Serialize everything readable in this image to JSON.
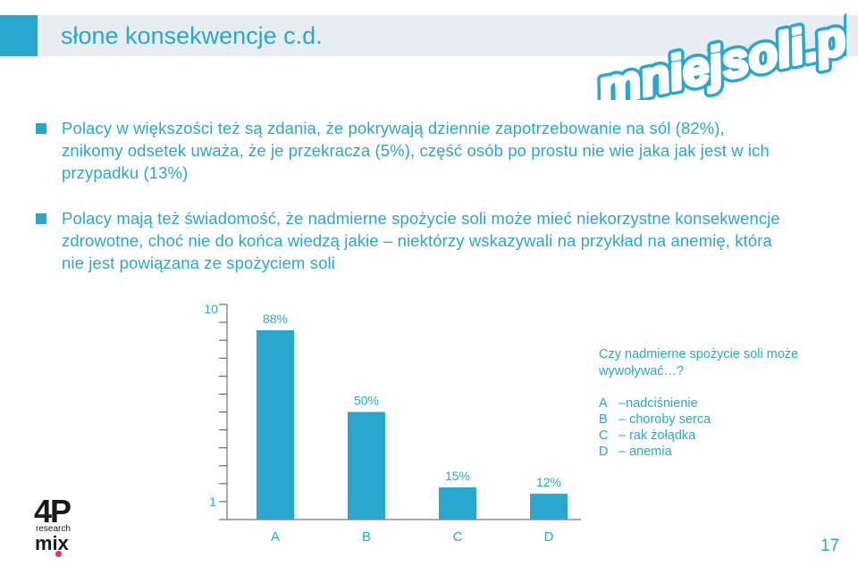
{
  "slide": {
    "title": "słone konsekwencje c.d.",
    "logo_text": "mniejsoli.pl",
    "page_number": "17",
    "colors": {
      "accent": "#2aa7cf",
      "title_bar": "#e7edf1",
      "bar": "#2aa7cf",
      "axis": "#555555"
    }
  },
  "bullets": [
    {
      "text": "Polacy w większości też są zdania, że pokrywają dziennie zapotrzebowanie na sól (82%), znikomy odsetek uważa, że je przekracza (5%), część osób po prostu nie wie jaka jak jest w ich przypadku (13%)"
    },
    {
      "text": "Polacy mają też świadomość, że nadmierne spożycie soli może mieć niekorzystne konsekwencje zdrowotne, choć nie do końca wiedzą jakie – niektórzy wskazywali na przykład na anemię, która nie jest powiązana ze spożyciem soli"
    }
  ],
  "chart_data": {
    "type": "bar",
    "categories": [
      "A",
      "B",
      "C",
      "D"
    ],
    "values": [
      88,
      50,
      15,
      12
    ],
    "value_labels": [
      "88%",
      "50%",
      "15%",
      "12%"
    ],
    "y_tick_labels": {
      "top": "10",
      "bottom": "1"
    },
    "ylim": [
      0,
      100
    ],
    "minor_ticks": 13,
    "legend_title": "Czy nadmierne spożycie soli może wywoływać…?",
    "legend": [
      {
        "letter": "A",
        "text": "–nadciśnienie"
      },
      {
        "letter": "B",
        "text": "– choroby serca"
      },
      {
        "letter": "C",
        "text": "– rak żołądka"
      },
      {
        "letter": "D",
        "text": "– anemia"
      }
    ]
  },
  "brand": {
    "big": "4P",
    "small": "research",
    "word": "mix"
  }
}
